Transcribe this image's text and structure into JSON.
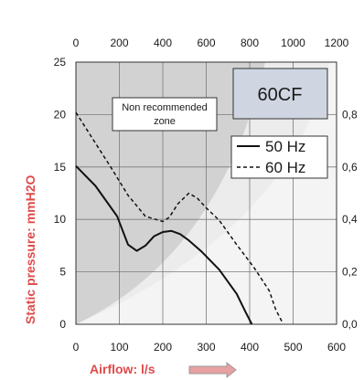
{
  "chart_data": {
    "type": "line",
    "model_label": "60CF",
    "zone_label_line1": "Non recommended",
    "zone_label_line2": "zone",
    "xlabel": "Airflow: l/s",
    "ylabel": "Static pressure: mmH2O",
    "x_ticks_bottom": [
      "0",
      "100",
      "200",
      "300",
      "400",
      "500",
      "600"
    ],
    "x_ticks_top": [
      "0",
      "200",
      "400",
      "600",
      "800",
      "1000",
      "1200"
    ],
    "y_ticks_left": [
      "0",
      "5",
      "10",
      "15",
      "20",
      "25"
    ],
    "y_ticks_right": [
      "0,0",
      "0,2",
      "0,4",
      "0,6",
      "0,8"
    ],
    "xlim": [
      0,
      600
    ],
    "ylim": [
      0,
      25
    ],
    "grid": true,
    "legend_position": "top-right",
    "series": [
      {
        "name": "50 Hz",
        "style": "solid",
        "x": [
          0,
          45,
          95,
          120,
          140,
          160,
          180,
          200,
          220,
          240,
          260,
          290,
          330,
          370,
          390,
          405
        ],
        "y": [
          15.1,
          13.2,
          10.3,
          7.6,
          7.0,
          7.5,
          8.4,
          8.8,
          8.9,
          8.6,
          8.0,
          6.9,
          5.2,
          2.9,
          1.2,
          0.0
        ]
      },
      {
        "name": "60 Hz",
        "style": "dashed",
        "x": [
          0,
          40,
          80,
          120,
          160,
          200,
          215,
          235,
          260,
          280,
          300,
          330,
          370,
          410,
          445,
          460,
          475
        ],
        "y": [
          20.2,
          17.6,
          15.0,
          12.3,
          10.3,
          9.8,
          10.2,
          11.5,
          12.5,
          12.0,
          11.1,
          9.9,
          7.6,
          5.4,
          3.2,
          1.4,
          0.2
        ]
      }
    ],
    "colors": {
      "zone_dark": "#d0d0d0",
      "zone_light": "#ededed",
      "plot_bg": "#f4f4f4",
      "line": "#111111",
      "title_red": "#e04a4a",
      "model_box": "#cfd6e1"
    }
  }
}
